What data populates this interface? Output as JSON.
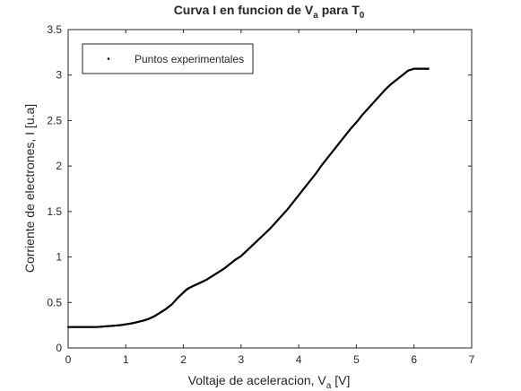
{
  "chart_data": {
    "type": "scatter",
    "title": {
      "main": "Curva I en funcion de V",
      "sub1": "a",
      "mid": " para T",
      "sub2": "0"
    },
    "xlabel": {
      "main": "Voltaje de aceleracion, V",
      "sub": "a",
      "tail": " [V]"
    },
    "ylabel": "Corriente de electrones, I [u.a]",
    "xlim": [
      0,
      7
    ],
    "ylim": [
      0,
      3.5
    ],
    "xticks": [
      "0",
      "1",
      "2",
      "3",
      "4",
      "5",
      "6",
      "7"
    ],
    "yticks": [
      "0",
      "0.5",
      "1",
      "1.5",
      "2",
      "2.5",
      "3",
      "3.5"
    ],
    "grid": false,
    "legend_position": "top-left",
    "series": [
      {
        "name": "Puntos experimentales",
        "color": "#000000",
        "marker": "dot",
        "x": [
          0.0,
          0.1,
          0.2,
          0.3,
          0.4,
          0.5,
          0.6,
          0.7,
          0.8,
          0.9,
          1.0,
          1.1,
          1.2,
          1.3,
          1.4,
          1.5,
          1.6,
          1.7,
          1.8,
          1.9,
          2.0,
          2.05,
          2.1,
          2.2,
          2.3,
          2.4,
          2.5,
          2.6,
          2.7,
          2.8,
          2.9,
          3.0,
          3.1,
          3.2,
          3.3,
          3.4,
          3.5,
          3.6,
          3.7,
          3.8,
          3.9,
          4.0,
          4.1,
          4.2,
          4.3,
          4.4,
          4.5,
          4.6,
          4.7,
          4.8,
          4.9,
          5.0,
          5.1,
          5.2,
          5.3,
          5.4,
          5.5,
          5.6,
          5.7,
          5.8,
          5.9,
          6.0,
          6.1,
          6.2,
          6.25
        ],
        "y": [
          0.23,
          0.23,
          0.23,
          0.23,
          0.23,
          0.23,
          0.235,
          0.24,
          0.245,
          0.25,
          0.26,
          0.27,
          0.285,
          0.3,
          0.32,
          0.35,
          0.39,
          0.43,
          0.48,
          0.55,
          0.61,
          0.64,
          0.66,
          0.69,
          0.72,
          0.75,
          0.79,
          0.83,
          0.87,
          0.92,
          0.97,
          1.01,
          1.07,
          1.13,
          1.19,
          1.25,
          1.31,
          1.38,
          1.45,
          1.52,
          1.6,
          1.68,
          1.76,
          1.84,
          1.92,
          2.01,
          2.09,
          2.17,
          2.25,
          2.33,
          2.41,
          2.48,
          2.56,
          2.63,
          2.7,
          2.77,
          2.84,
          2.9,
          2.95,
          3.0,
          3.05,
          3.07,
          3.07,
          3.07,
          3.07
        ]
      }
    ]
  }
}
